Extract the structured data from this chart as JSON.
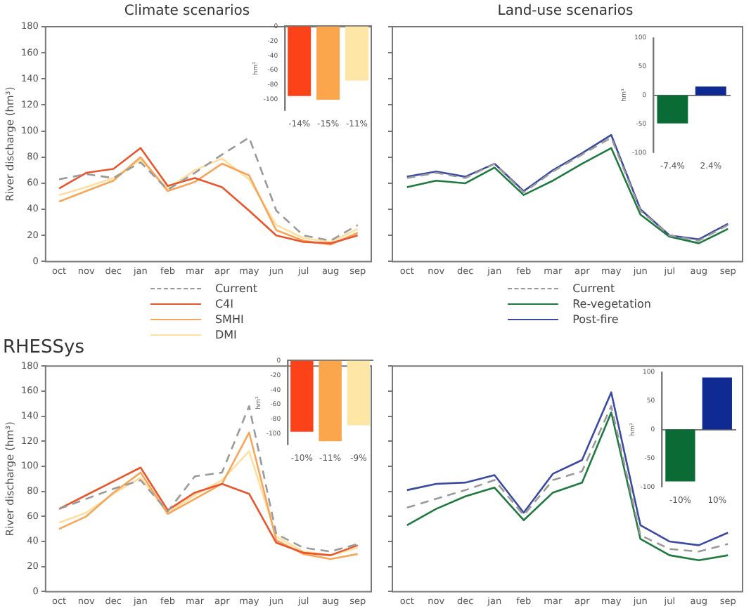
{
  "chart_data": [
    {
      "type": "line",
      "title": "Climate scenarios",
      "ylabel": "River discharge (hm³)",
      "categories": [
        "oct",
        "nov",
        "dec",
        "jan",
        "feb",
        "mar",
        "apr",
        "may",
        "jun",
        "jul",
        "aug",
        "sep"
      ],
      "ylim": [
        0,
        180
      ],
      "yticks": [
        0,
        20,
        40,
        60,
        80,
        100,
        120,
        140,
        160,
        180
      ],
      "grid": false,
      "legend": false,
      "series": [
        {
          "color": "#9a9a9a",
          "line_style": "dashed",
          "values": [
            63,
            67,
            64,
            76,
            55,
            68,
            82,
            95,
            39,
            20,
            16,
            28
          ]
        },
        {
          "color": "#e8562e",
          "values": [
            56,
            68,
            71,
            87,
            58,
            64,
            57,
            39,
            20,
            15,
            14,
            20
          ]
        },
        {
          "color": "#f5a65b",
          "values": [
            46,
            54,
            62,
            80,
            54,
            61,
            75,
            66,
            24,
            16,
            13,
            22
          ]
        },
        {
          "color": "#fde0a0",
          "values": [
            51,
            57,
            64,
            78,
            56,
            70,
            79,
            63,
            28,
            18,
            15,
            25
          ]
        }
      ]
    },
    {
      "type": "bar",
      "ylabel": "hm³",
      "categories": [
        "-14%",
        "-15%",
        "-11%"
      ],
      "ylim": [
        -115,
        0
      ],
      "yticks": [
        0,
        -20,
        -40,
        -60,
        -80,
        -100
      ],
      "grid": false,
      "legend": false,
      "values": [
        -95,
        -100,
        -74
      ],
      "colors": [
        "#fc4219",
        "#fba54c",
        "#fde6a6"
      ]
    },
    {
      "type": "line",
      "title": "Land-use scenarios",
      "categories": [
        "oct",
        "nov",
        "dec",
        "jan",
        "feb",
        "mar",
        "apr",
        "may",
        "jun",
        "jul",
        "aug",
        "sep"
      ],
      "ylim": [
        0,
        180
      ],
      "yticks": [
        0,
        20,
        40,
        60,
        80,
        100,
        120,
        140,
        160,
        180
      ],
      "tick_labels": "x",
      "grid": false,
      "legend": false,
      "series": [
        {
          "color": "#9a9a9a",
          "line_style": "dashed",
          "values": [
            64,
            68,
            64,
            75,
            53,
            69,
            82,
            95,
            39,
            20,
            16,
            28
          ]
        },
        {
          "color": "#1f7a3f",
          "values": [
            57,
            62,
            60,
            72,
            51,
            62,
            75,
            87,
            36,
            19,
            14,
            25
          ]
        },
        {
          "color": "#3a4aa0",
          "values": [
            65,
            69,
            65,
            75,
            54,
            70,
            83,
            97,
            40,
            20,
            17,
            29
          ]
        }
      ]
    },
    {
      "type": "bar",
      "ylabel": "hm³",
      "categories": [
        "-7.4%",
        "2.4%"
      ],
      "ylim": [
        -100,
        100
      ],
      "yticks": [
        -100,
        -50,
        0,
        50,
        100
      ],
      "legend": false,
      "values": [
        -49,
        15
      ],
      "colors": [
        "#0b6b35",
        "#102a94"
      ]
    },
    {
      "type": "line",
      "title": "RHESSys",
      "ylabel": "River discharge (hm³)",
      "categories": [
        "oct",
        "nov",
        "dec",
        "jan",
        "feb",
        "mar",
        "apr",
        "may",
        "jun",
        "jul",
        "aug",
        "sep"
      ],
      "ylim": [
        0,
        180
      ],
      "yticks": [
        0,
        20,
        40,
        60,
        80,
        100,
        120,
        140,
        160,
        180
      ],
      "grid": false,
      "legend": "top",
      "series": [
        {
          "name": "Current",
          "color": "#9a9a9a",
          "line_style": "dashed",
          "values": [
            66,
            74,
            82,
            89,
            64,
            92,
            95,
            148,
            46,
            35,
            32,
            38
          ]
        },
        {
          "name": "C4I",
          "color": "#e8562e",
          "values": [
            66,
            77,
            88,
            99,
            65,
            79,
            86,
            78,
            39,
            31,
            29,
            37
          ]
        },
        {
          "name": "SMHI",
          "color": "#f5a65b",
          "values": [
            50,
            60,
            79,
            95,
            62,
            74,
            86,
            127,
            41,
            30,
            26,
            30
          ]
        },
        {
          "name": "DMI",
          "color": "#fde0a0",
          "values": [
            55,
            63,
            78,
            91,
            63,
            77,
            89,
            112,
            44,
            32,
            29,
            35
          ]
        }
      ]
    },
    {
      "type": "bar",
      "ylabel": "hm³",
      "categories": [
        "-10%",
        "-11%",
        "-9%"
      ],
      "ylim": [
        -115,
        0
      ],
      "yticks": [
        0,
        -20,
        -40,
        -60,
        -80,
        -100
      ],
      "grid": false,
      "legend": false,
      "values": [
        -97,
        -110,
        -88
      ],
      "colors": [
        "#fc4219",
        "#fba54c",
        "#fde6a6"
      ]
    },
    {
      "type": "line",
      "categories": [
        "oct",
        "nov",
        "dec",
        "jan",
        "feb",
        "mar",
        "apr",
        "may",
        "jun",
        "jul",
        "aug",
        "sep"
      ],
      "ylim": [
        0,
        180
      ],
      "yticks": [
        0,
        20,
        40,
        60,
        80,
        100,
        120,
        140,
        160,
        180
      ],
      "tick_labels": "x",
      "grid": false,
      "legend": "top",
      "series": [
        {
          "name": "Current",
          "color": "#9a9a9a",
          "line_style": "dashed",
          "values": [
            67,
            74,
            81,
            89,
            61,
            89,
            96,
            148,
            45,
            34,
            32,
            38
          ]
        },
        {
          "name": "Re-vegetation",
          "color": "#1f7a3f",
          "values": [
            53,
            66,
            76,
            83,
            57,
            79,
            87,
            143,
            42,
            29,
            25,
            29
          ]
        },
        {
          "name": "Post-fire",
          "color": "#3a4aa0",
          "values": [
            81,
            86,
            87,
            93,
            63,
            94,
            105,
            159,
            53,
            40,
            37,
            47
          ]
        }
      ]
    },
    {
      "type": "bar",
      "ylabel": "hm³",
      "categories": [
        "-10%",
        "10%"
      ],
      "ylim": [
        -100,
        100
      ],
      "yticks": [
        -100,
        -50,
        0,
        50,
        100
      ],
      "legend": false,
      "values": [
        -90,
        90
      ],
      "colors": [
        "#0b6b35",
        "#102a94"
      ]
    }
  ]
}
